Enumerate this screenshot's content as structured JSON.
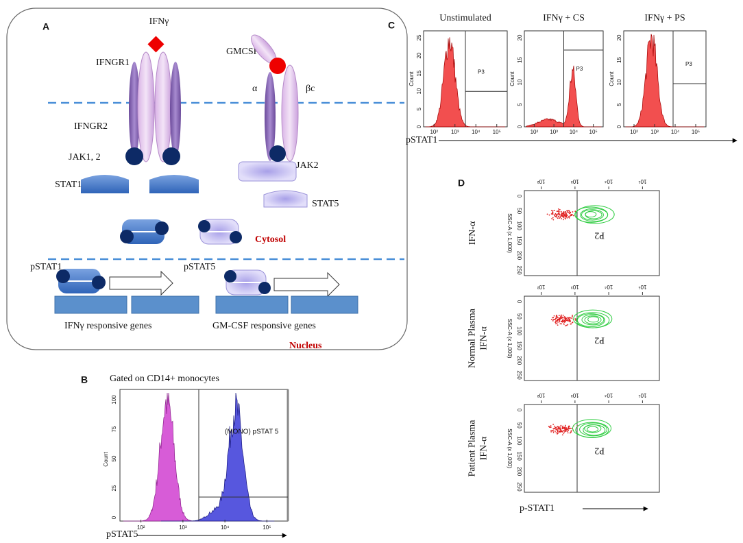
{
  "panel_a": {
    "label": "A",
    "ifn": "IFNγ",
    "ifngr1": "IFNGR1",
    "ifngr2": "IFNGR2",
    "jak12": "JAK1, 2",
    "stat1": "STAT1",
    "gmcsf": "GMCSF",
    "alpha": "α",
    "beta": "βc",
    "jak2": "JAK2",
    "stat5": "STAT5",
    "cytosol": "Cytosol",
    "pstat1": "pSTAT1",
    "pstat5": "pSTAT5",
    "ifn_genes": "IFNγ responsive genes",
    "gm_genes": "GM-CSF responsive genes",
    "nucleus": "Nucleus"
  },
  "panel_b": {
    "label": "B",
    "title": "Gated on CD14+ monocytes",
    "y_label": "Count",
    "yticks": [
      0,
      25,
      50,
      75,
      100
    ],
    "xticks": [
      "10²",
      "10³",
      "10⁴",
      "10⁵"
    ],
    "gate": "(MONO) pSTAT 5",
    "x_label": "pSTAT5"
  },
  "panel_c": {
    "label": "C",
    "plots": [
      {
        "title": "Unstimulated",
        "y_label": "Count",
        "yticks": [
          0,
          5,
          10,
          15,
          20,
          25
        ],
        "gate": "P3"
      },
      {
        "title": "IFNγ + CS",
        "y_label": "Count",
        "yticks": [
          0,
          5,
          10,
          15,
          20
        ],
        "gate": "P3"
      },
      {
        "title": "IFNγ + PS",
        "y_label": "Count",
        "yticks": [
          0,
          5,
          10,
          15,
          20
        ],
        "gate": "P3"
      }
    ],
    "xticks": [
      "10²",
      "10³",
      "10⁴",
      "10⁵"
    ],
    "x_label": "pSTAT1"
  },
  "panel_d": {
    "label": "D",
    "plots": [
      {
        "y_label": [
          "IFN-α"
        ]
      },
      {
        "y_label": [
          "Normal Plasma",
          "IFN-α"
        ]
      },
      {
        "y_label": [
          "Patient Plasma",
          "IFN-α"
        ]
      }
    ],
    "axis_label": "SSC-A (x 1,000)",
    "yticks": [
      0,
      50,
      100,
      150,
      200,
      250
    ],
    "xticks": [
      "10²",
      "10³",
      "10⁴",
      "10⁵"
    ],
    "gate": "P2",
    "x_label": "p-STAT1"
  }
}
